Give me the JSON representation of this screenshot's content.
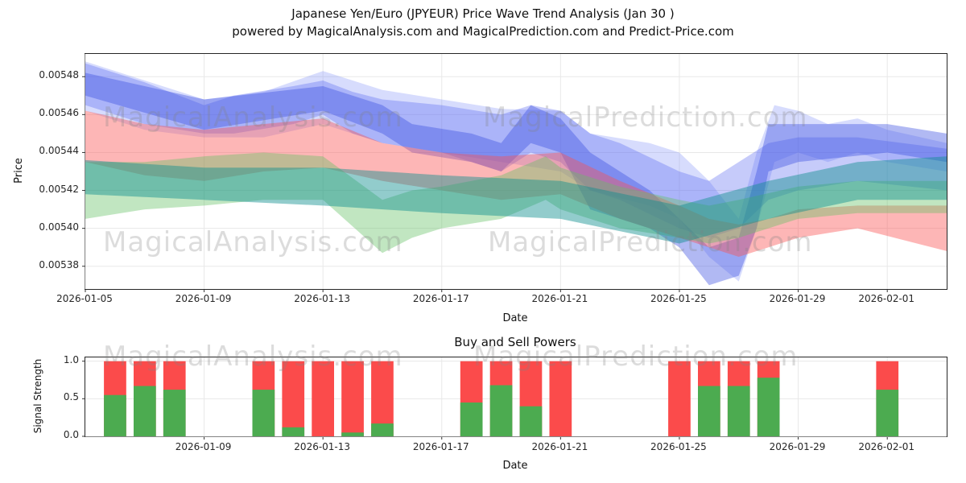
{
  "figure": {
    "title_line1": "Japanese Yen/Euro (JPYEUR) Price Wave Trend Analysis (Jan 30 )",
    "title_line2": "powered by MagicalAnalysis.com and MagicalPrediction.com and Predict-Price.com"
  },
  "watermarks": {
    "analysis": "MagicalAnalysis.com",
    "prediction": "MagicalPrediction.com"
  },
  "chart_data": [
    {
      "type": "area",
      "name": "price-wave-trend",
      "title": "",
      "xlabel": "Date",
      "ylabel": "Price",
      "x_start_date": "2026-01-05",
      "xlim_days": [
        0,
        29
      ],
      "ylim": [
        0.005368,
        0.005492
      ],
      "grid": true,
      "x_ticks": [
        {
          "day": 0,
          "label": "2026-01-05"
        },
        {
          "day": 4,
          "label": "2026-01-09"
        },
        {
          "day": 8,
          "label": "2026-01-13"
        },
        {
          "day": 12,
          "label": "2026-01-17"
        },
        {
          "day": 16,
          "label": "2026-01-21"
        },
        {
          "day": 20,
          "label": "2026-01-25"
        },
        {
          "day": 24,
          "label": "2026-01-29"
        },
        {
          "day": 27,
          "label": "2026-02-01"
        }
      ],
      "y_ticks": [
        {
          "value": 0.00538,
          "label": "0.00538"
        },
        {
          "value": 0.0054,
          "label": "0.00540"
        },
        {
          "value": 0.00542,
          "label": "0.00542"
        },
        {
          "value": 0.00544,
          "label": "0.00544"
        },
        {
          "value": 0.00546,
          "label": "0.00546"
        },
        {
          "value": 0.00548,
          "label": "0.00548"
        }
      ],
      "bands": [
        {
          "name": "blue-outer",
          "color": "#7b8cf8",
          "alpha": 0.3,
          "x": [
            0,
            2,
            4,
            6,
            8,
            10,
            12,
            14,
            16,
            17,
            19,
            20,
            21,
            22,
            22.6,
            23.2,
            24,
            25,
            26,
            27,
            29
          ],
          "upper": [
            0.005488,
            0.005478,
            0.005468,
            0.005472,
            0.005483,
            0.005473,
            0.005468,
            0.005463,
            0.005462,
            0.00545,
            0.005445,
            0.00544,
            0.005425,
            0.005405,
            0.00544,
            0.005465,
            0.005462,
            0.005455,
            0.005458,
            0.005452,
            0.005445
          ],
          "lower": [
            0.005462,
            0.005452,
            0.005448,
            0.005448,
            0.005455,
            0.005445,
            0.00544,
            0.005435,
            0.00543,
            0.00542,
            0.005412,
            0.005405,
            0.005385,
            0.005372,
            0.0054,
            0.005435,
            0.00544,
            0.005435,
            0.00544,
            0.005435,
            0.00543
          ]
        },
        {
          "name": "blue-mid",
          "color": "#5868ef",
          "alpha": 0.34,
          "x": [
            0,
            2,
            4,
            5,
            7,
            8,
            9,
            10,
            12,
            14,
            15,
            16,
            17,
            18,
            20,
            21,
            22,
            23,
            24,
            26,
            29
          ],
          "upper": [
            0.005487,
            0.005477,
            0.005465,
            0.00547,
            0.005475,
            0.005478,
            0.005472,
            0.005468,
            0.005465,
            0.00546,
            0.005465,
            0.005462,
            0.00545,
            0.005445,
            0.00543,
            0.005425,
            0.005435,
            0.005445,
            0.005448,
            0.005448,
            0.005442
          ],
          "lower": [
            0.005465,
            0.005455,
            0.00545,
            0.00545,
            0.005455,
            0.00546,
            0.00545,
            0.005445,
            0.00544,
            0.00543,
            0.00544,
            0.005435,
            0.00542,
            0.005415,
            0.0054,
            0.005395,
            0.0054,
            0.005415,
            0.00542,
            0.005425,
            0.00542
          ]
        },
        {
          "name": "blue-inner",
          "color": "#3d4fe0",
          "alpha": 0.4,
          "x": [
            0,
            4,
            8,
            10,
            11,
            13,
            14,
            15,
            16,
            17,
            19,
            20,
            21,
            22,
            22.6,
            23,
            24,
            27,
            29
          ],
          "upper": [
            0.005482,
            0.005468,
            0.005475,
            0.005465,
            0.005455,
            0.00545,
            0.005445,
            0.005465,
            0.005458,
            0.00544,
            0.00542,
            0.005405,
            0.00539,
            0.005395,
            0.00543,
            0.005455,
            0.005455,
            0.005455,
            0.00545
          ],
          "lower": [
            0.00547,
            0.005452,
            0.005462,
            0.00545,
            0.00544,
            0.005435,
            0.00543,
            0.005445,
            0.00544,
            0.00541,
            0.0054,
            0.00539,
            0.00537,
            0.005375,
            0.0054,
            0.00543,
            0.005435,
            0.00544,
            0.005435
          ]
        },
        {
          "name": "red",
          "color": "#fb5050",
          "alpha": 0.42,
          "x": [
            0,
            2,
            4,
            6,
            8,
            10,
            12,
            14,
            16,
            18,
            20,
            21,
            22,
            23,
            24,
            26,
            29
          ],
          "upper": [
            0.005462,
            0.005455,
            0.005452,
            0.005455,
            0.005458,
            0.005445,
            0.00544,
            0.005438,
            0.00544,
            0.005425,
            0.005412,
            0.005405,
            0.005402,
            0.005405,
            0.00541,
            0.005412,
            0.005412
          ],
          "lower": [
            0.005435,
            0.005428,
            0.005425,
            0.00543,
            0.005432,
            0.005425,
            0.00542,
            0.005415,
            0.005418,
            0.005405,
            0.005395,
            0.00539,
            0.005385,
            0.00539,
            0.005395,
            0.0054,
            0.005388
          ]
        },
        {
          "name": "green",
          "color": "#63c063",
          "alpha": 0.4,
          "x": [
            0,
            2,
            4,
            6,
            8,
            10,
            11,
            12,
            14,
            15.5,
            16,
            18,
            20,
            21,
            22,
            24,
            26,
            29
          ],
          "upper": [
            0.005435,
            0.005435,
            0.005438,
            0.00544,
            0.005438,
            0.005415,
            0.00542,
            0.005422,
            0.005428,
            0.005438,
            0.005432,
            0.005422,
            0.005415,
            0.005412,
            0.005415,
            0.005422,
            0.005425,
            0.005425
          ],
          "lower": [
            0.005405,
            0.00541,
            0.005412,
            0.005415,
            0.005415,
            0.005387,
            0.005395,
            0.0054,
            0.005405,
            0.005415,
            0.00541,
            0.0054,
            0.005395,
            0.005392,
            0.005395,
            0.005405,
            0.005408,
            0.005408
          ]
        },
        {
          "name": "teal",
          "color": "#0e8f8f",
          "alpha": 0.45,
          "x": [
            0,
            4,
            8,
            12,
            16,
            20,
            23,
            26,
            29
          ],
          "upper": [
            0.005436,
            0.005432,
            0.005432,
            0.005428,
            0.005425,
            0.005412,
            0.005425,
            0.005435,
            0.005438
          ],
          "lower": [
            0.005418,
            0.005415,
            0.005412,
            0.005408,
            0.005405,
            0.005392,
            0.005405,
            0.005415,
            0.005415
          ]
        }
      ]
    },
    {
      "type": "bar",
      "name": "buy-sell-powers",
      "title": "Buy and Sell Powers",
      "xlabel": "Date",
      "ylabel": "Signal Strength",
      "xlim_days": [
        0,
        29
      ],
      "ylim": [
        0,
        1.05
      ],
      "grid": true,
      "bar_width_days": 0.75,
      "colors": {
        "sell": "#fb4b4b",
        "buy": "#4cab50"
      },
      "x_ticks": [
        {
          "day": 4,
          "label": "2026-01-09"
        },
        {
          "day": 8,
          "label": "2026-01-13"
        },
        {
          "day": 12,
          "label": "2026-01-17"
        },
        {
          "day": 16,
          "label": "2026-01-21"
        },
        {
          "day": 20,
          "label": "2026-01-25"
        },
        {
          "day": 24,
          "label": "2026-01-29"
        },
        {
          "day": 27,
          "label": "2026-02-01"
        }
      ],
      "y_ticks": [
        {
          "value": 0.0,
          "label": "0.0"
        },
        {
          "value": 0.5,
          "label": "0.5"
        },
        {
          "value": 1.0,
          "label": "1.0"
        }
      ],
      "bars": [
        {
          "date": "2026-01-06",
          "day": 1,
          "sell": 1.0,
          "buy": 0.55
        },
        {
          "date": "2026-01-07",
          "day": 2,
          "sell": 1.0,
          "buy": 0.67
        },
        {
          "date": "2026-01-08",
          "day": 3,
          "sell": 1.0,
          "buy": 0.62
        },
        {
          "date": "2026-01-11",
          "day": 6,
          "sell": 1.0,
          "buy": 0.62
        },
        {
          "date": "2026-01-12",
          "day": 7,
          "sell": 1.0,
          "buy": 0.12
        },
        {
          "date": "2026-01-13",
          "day": 8,
          "sell": 1.0,
          "buy": 0.0
        },
        {
          "date": "2026-01-14",
          "day": 9,
          "sell": 1.0,
          "buy": 0.05
        },
        {
          "date": "2026-01-15",
          "day": 10,
          "sell": 1.0,
          "buy": 0.17
        },
        {
          "date": "2026-01-18",
          "day": 13,
          "sell": 1.0,
          "buy": 0.45
        },
        {
          "date": "2026-01-19",
          "day": 14,
          "sell": 1.0,
          "buy": 0.68
        },
        {
          "date": "2026-01-20",
          "day": 15,
          "sell": 1.0,
          "buy": 0.4
        },
        {
          "date": "2026-01-21",
          "day": 16,
          "sell": 1.0,
          "buy": 0.0
        },
        {
          "date": "2026-01-25",
          "day": 20,
          "sell": 1.0,
          "buy": 0.0
        },
        {
          "date": "2026-01-26",
          "day": 21,
          "sell": 1.0,
          "buy": 0.67
        },
        {
          "date": "2026-01-27",
          "day": 22,
          "sell": 1.0,
          "buy": 0.67
        },
        {
          "date": "2026-01-28",
          "day": 23,
          "sell": 1.0,
          "buy": 0.78
        },
        {
          "date": "2026-02-01",
          "day": 27,
          "sell": 1.0,
          "buy": 0.62
        }
      ]
    }
  ]
}
